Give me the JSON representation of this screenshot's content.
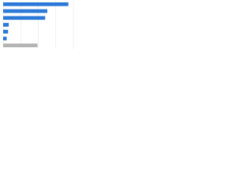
{
  "chart_data": {
    "type": "hbar",
    "categories": [
      null,
      null,
      null,
      null,
      null,
      null,
      null
    ],
    "values": [
      93,
      63,
      60,
      8,
      7,
      5,
      49
    ],
    "colors": [
      "#2a78d8",
      "#2a78d8",
      "#2a78d8",
      "#2a78d8",
      "#2a78d8",
      "#2a78d8",
      "#b3b3b3"
    ],
    "xlim": [
      0,
      100
    ],
    "xticks": [
      0,
      25,
      50,
      75,
      100
    ],
    "grid": true
  }
}
